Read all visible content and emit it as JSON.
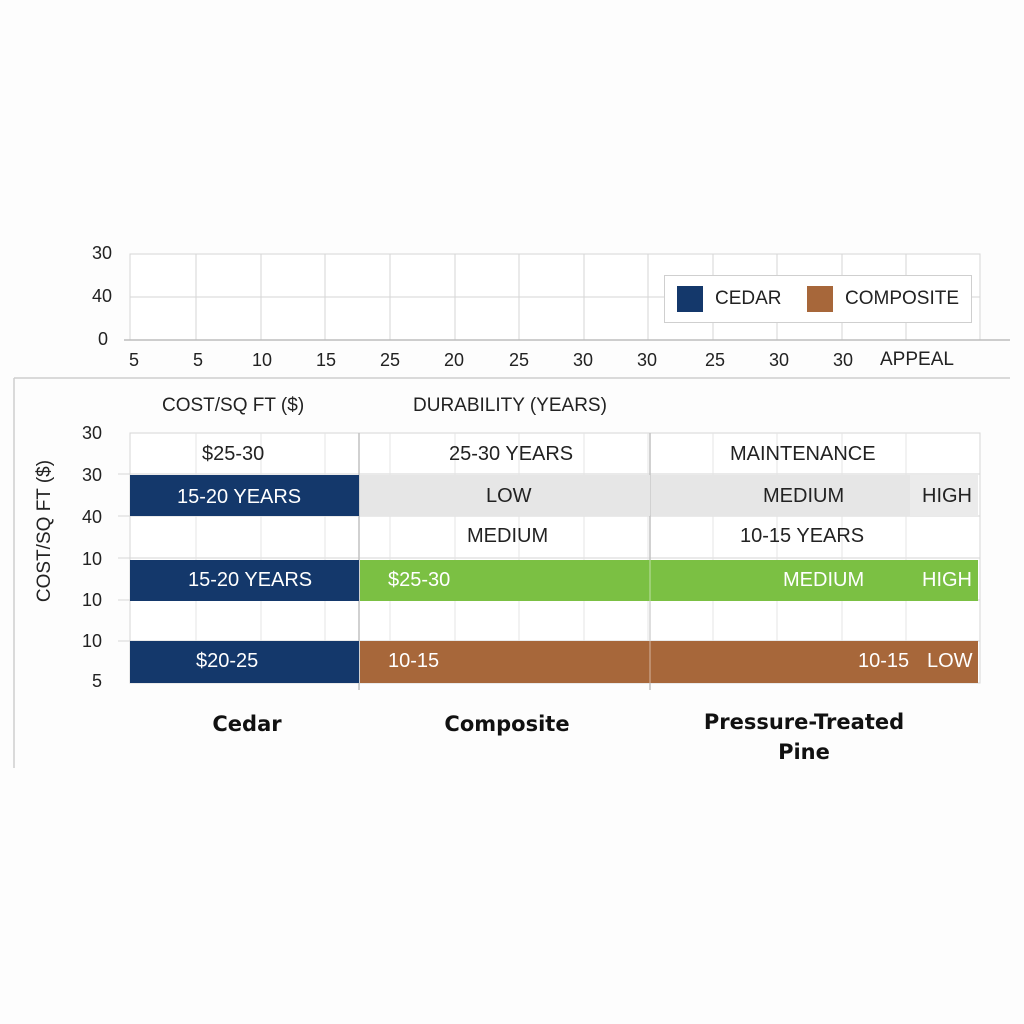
{
  "colors": {
    "navy": "#14386b",
    "brown": "#a7673a",
    "green": "#7bc043",
    "light": "#e6e6e6",
    "grid": "#d6d6d6"
  },
  "top_chart": {
    "y_ticks": [
      "30",
      "40",
      "0"
    ],
    "x_ticks": [
      "5",
      "5",
      "10",
      "15",
      "25",
      "20",
      "25",
      "30",
      "30",
      "25",
      "30",
      "30"
    ],
    "x_end_label": "APPEAL",
    "legend": [
      {
        "name": "CEDAR",
        "color": "#14386b"
      },
      {
        "name": "COMPOSITE",
        "color": "#a7673a"
      }
    ]
  },
  "bottom_chart": {
    "header_left": "COST/SQ FT ($)",
    "header_mid": "DURABILITY (YEARS)",
    "y_axis_label": "COST/SQ FT ($)",
    "y_ticks": [
      "30",
      "30",
      "40",
      "10",
      "10",
      "10",
      "5"
    ],
    "row0": {
      "cedar": "$25-30",
      "composite": "25-30 YEARS",
      "pine": "MAINTENANCE"
    },
    "row1": {
      "cedar": "15-20 YEARS",
      "composite": "LOW",
      "pine": "MEDIUM",
      "pine_end": "HIGH"
    },
    "row2": {
      "composite": "MEDIUM",
      "pine": "10-15 YEARS"
    },
    "row3": {
      "cedar": "15-20 YEARS",
      "composite": "$25-30",
      "pine": "MEDIUM",
      "pine_end": "HIGH"
    },
    "row4": {
      "cedar": "$20-25",
      "composite": "10-15",
      "pine": "10-15",
      "pine_end": "LOW"
    },
    "categories": [
      "Cedar",
      "Composite",
      "Pressure-Treated",
      "Pine"
    ]
  },
  "chart_data": {
    "type": "table",
    "legend": [
      "CEDAR",
      "COMPOSITE"
    ],
    "categories": [
      "Cedar",
      "Composite",
      "Pressure-Treated Pine"
    ],
    "rows": [
      [
        "$25-30",
        "25-30 YEARS",
        "MAINTENANCE"
      ],
      [
        "15-20 YEARS",
        "LOW",
        "MEDIUM",
        "HIGH"
      ],
      [
        "",
        "MEDIUM",
        "10-15 YEARS"
      ],
      [
        "15-20 YEARS",
        "$25-30",
        "MEDIUM",
        "HIGH"
      ],
      [
        "$20-25",
        "10-15",
        "10-15",
        "LOW"
      ]
    ]
  }
}
